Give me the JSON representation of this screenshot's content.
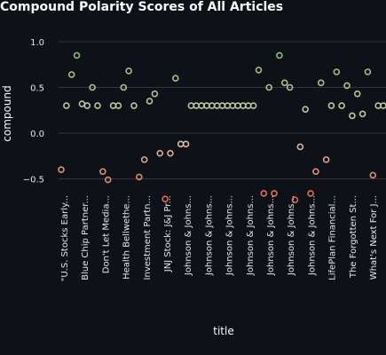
{
  "chart_data": {
    "type": "scatter",
    "title": "Compound Polarity Scores of All Articles",
    "xlabel": "title",
    "ylabel": "compound",
    "ylim": [
      -0.75,
      1.02
    ],
    "yticks": [
      1.0,
      0.5,
      0.0,
      -0.5
    ],
    "ytick_labels": [
      "1.0",
      "0.5",
      "0.0",
      "−0.5"
    ],
    "grid": true,
    "color_scale": {
      "negative": "#e0644a",
      "neutral": "#d7cbb8",
      "positive": "#8cbc78"
    },
    "tick_labels": [
      "\"U.S. Stocks Early...",
      "Blue Chip Partner...",
      "Don't Let Media...",
      "Health Bellwethe...",
      "Investment Partn...",
      "JNJ Stock: J&J Pr...",
      "Johnson & Johns...",
      "Johnson & Johns...",
      "Johnson & Johns...",
      "Johnson & Johns...",
      "Johnson & Johns...",
      "Johnson & Johns...",
      "Johnson & Johns...",
      "LifePlan Financial...",
      "The Forgotten St...",
      "What's Next For J..."
    ],
    "y": [
      -0.4,
      0.3,
      0.64,
      0.85,
      0.32,
      0.3,
      0.5,
      0.3,
      -0.42,
      -0.51,
      0.3,
      0.3,
      0.5,
      0.68,
      0.3,
      -0.48,
      -0.29,
      0.35,
      0.43,
      -0.22,
      -0.72,
      -0.22,
      0.6,
      -0.12,
      -0.12,
      0.3,
      0.3,
      0.3,
      0.3,
      0.3,
      0.3,
      0.3,
      0.3,
      0.3,
      0.3,
      0.3,
      0.3,
      0.3,
      0.69,
      -0.66,
      0.5,
      -0.66,
      0.85,
      0.55,
      0.5,
      -0.73,
      -0.15,
      0.26,
      -0.66,
      -0.42,
      0.55,
      -0.29,
      0.3,
      0.67,
      0.3,
      0.52,
      0.19,
      0.43,
      0.21,
      0.67,
      -0.46,
      0.3,
      0.3
    ]
  }
}
